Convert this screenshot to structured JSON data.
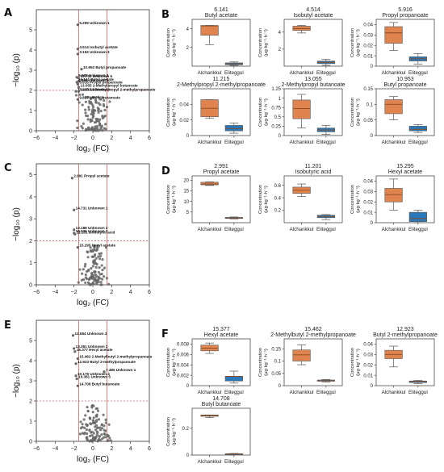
{
  "panels": [
    {
      "letter": "A",
      "type": "volcano",
      "xlabel": "log₂ (FC)",
      "ylabel": "−log₁₀ (p)",
      "xlim": [
        -6,
        6
      ],
      "ylim": [
        0,
        6
      ],
      "xticks": [
        -6,
        -4,
        -2,
        0,
        2,
        4,
        6
      ],
      "yticks": [
        0,
        1,
        2,
        3,
        4,
        5
      ],
      "thresholds": {
        "x": [
          -1.5,
          1.5
        ],
        "y": 2
      },
      "annotations": [
        {
          "text": "5.299 Unknown 1",
          "x": -1.6,
          "y": 5.25
        },
        {
          "text": "4.514 Isobutyl acetate",
          "x": -1.6,
          "y": 4.05
        },
        {
          "text": "3.152 Unknown 3",
          "x": -1.6,
          "y": 3.8
        },
        {
          "text": "10.953 Butyl propanoate",
          "x": -1.2,
          "y": 3.05
        },
        {
          "text": "8.988 Unknown 4",
          "x": -1.7,
          "y": 2.65
        },
        {
          "text": "13.711 Unknown 6",
          "x": -1.5,
          "y": 2.6
        },
        {
          "text": "6.141 Butyl acetate",
          "x": -1.5,
          "y": 2.45
        },
        {
          "text": "4.898 Unknown 5",
          "x": -1.7,
          "y": 2.4
        },
        {
          "text": "5.916 Propyl propanoate",
          "x": -1.6,
          "y": 2.3
        },
        {
          "text": "13.055 2-Methylpropyl butanoate",
          "x": -1.5,
          "y": 2.15
        },
        {
          "text": "10.455 Unknown 6",
          "x": -1.8,
          "y": 1.95
        },
        {
          "text": "11.215 2-Methylpropyl 2-methylpropanoate",
          "x": -1.5,
          "y": 1.95
        },
        {
          "text": "9.817 Methyl butanoate",
          "x": -1.6,
          "y": 1.55
        }
      ]
    },
    {
      "letter": "C",
      "type": "volcano",
      "xlabel": "log₂ (FC)",
      "ylabel": "−log₁₀ (p)",
      "xlim": [
        -6,
        6
      ],
      "ylim": [
        0,
        5.5
      ],
      "xticks": [
        -6,
        -4,
        -2,
        0,
        2,
        4,
        6
      ],
      "yticks": [
        0,
        1,
        2,
        3,
        4,
        5
      ],
      "thresholds": {
        "x": [
          -1.5,
          1.5
        ],
        "y": 2
      },
      "annotations": [
        {
          "text": "2.991 Propyl acetate",
          "x": -2.2,
          "y": 4.85
        },
        {
          "text": "14.731 Unknown 1",
          "x": -2.0,
          "y": 3.4
        },
        {
          "text": "13.188 Unknown 2",
          "x": -2.0,
          "y": 2.5
        },
        {
          "text": "10.026 Unknown 3",
          "x": -2.0,
          "y": 2.35
        },
        {
          "text": "11.201 Isobutyric acid",
          "x": -1.9,
          "y": 2.3
        },
        {
          "text": "15.295 Hexyl acetate",
          "x": -1.6,
          "y": 1.7
        }
      ]
    },
    {
      "letter": "E",
      "type": "volcano",
      "xlabel": "log₂ (FC)",
      "ylabel": "−log₁₀ (p)",
      "xlim": [
        -6,
        6
      ],
      "ylim": [
        0,
        6
      ],
      "xticks": [
        -6,
        -4,
        -2,
        0,
        2,
        4,
        6
      ],
      "yticks": [
        0,
        1,
        2,
        3,
        4,
        5
      ],
      "thresholds": {
        "x": [
          -1.5,
          1.5
        ],
        "y": 2
      },
      "annotations": [
        {
          "text": "13.684 Unknown 3",
          "x": -2.1,
          "y": 5.25
        },
        {
          "text": "13.361 Unknown 2",
          "x": -2.0,
          "y": 4.6
        },
        {
          "text": "15.377 Hexyl acetate",
          "x": -1.9,
          "y": 4.45
        },
        {
          "text": "15.462 2-Methylbutyl 2-methylpropanoate",
          "x": -1.6,
          "y": 4.1
        },
        {
          "text": "12.923 Butyl 2-methylpropanoate",
          "x": -1.8,
          "y": 3.85
        },
        {
          "text": "10.176 Unknown 4",
          "x": -1.8,
          "y": 3.25
        },
        {
          "text": "10.381 Unknown 5",
          "x": -1.7,
          "y": 3.1
        },
        {
          "text": "7.485 Unknown 1",
          "x": 1.2,
          "y": 3.45
        },
        {
          "text": "14.708 Butyl butanoate",
          "x": -1.6,
          "y": 2.75
        }
      ]
    },
    {
      "letter": "B",
      "type": "box"
    },
    {
      "letter": "D",
      "type": "box"
    },
    {
      "letter": "F",
      "type": "box"
    }
  ],
  "chart_data": [
    {
      "type": "box",
      "panel": "B",
      "code": "6.141",
      "name": "Butyl acetate",
      "ylabel": "Concentration (μg·kg⁻¹·h⁻¹)",
      "ylim": [
        0,
        5
      ],
      "yticks": [
        2,
        4
      ],
      "categories": [
        "Alchankkul",
        "Eliteggul"
      ],
      "boxes": [
        {
          "min": 2.3,
          "q1": 3.3,
          "median": 4.3,
          "q3": 4.35,
          "max": 4.35
        },
        {
          "min": 0.08,
          "q1": 0.15,
          "median": 0.25,
          "q3": 0.35,
          "max": 0.45
        }
      ]
    },
    {
      "type": "box",
      "panel": "B",
      "code": "4.514",
      "name": "Isobutyl acetate",
      "ylabel": "Concentration (μg·kg⁻¹·h⁻¹)",
      "ylim": [
        0,
        5.5
      ],
      "yticks": [
        2,
        4
      ],
      "categories": [
        "Alchankkul",
        "Eliteggul"
      ],
      "boxes": [
        {
          "min": 3.9,
          "q1": 4.2,
          "median": 4.4,
          "q3": 4.7,
          "max": 4.8
        },
        {
          "min": 0.1,
          "q1": 0.3,
          "median": 0.45,
          "q3": 0.6,
          "max": 0.8
        }
      ]
    },
    {
      "type": "box",
      "panel": "B",
      "code": "5.916",
      "name": "Propyl propanoate",
      "ylabel": "Concentration (μg·kg⁻¹·h⁻¹)",
      "ylim": [
        0,
        0.045
      ],
      "yticks": [
        0,
        0.01,
        0.02,
        0.03,
        0.04
      ],
      "categories": [
        "Alchankkul",
        "Eliteggul"
      ],
      "boxes": [
        {
          "min": 0.015,
          "q1": 0.022,
          "median": 0.032,
          "q3": 0.038,
          "max": 0.042
        },
        {
          "min": 0.002,
          "q1": 0.005,
          "median": 0.007,
          "q3": 0.009,
          "max": 0.012
        }
      ]
    },
    {
      "type": "box",
      "panel": "B",
      "code": "11.215",
      "name": "2-Methylpropyl 2-methylpropanoate",
      "ylabel": "Concentration (μg·kg⁻¹·h⁻¹)",
      "ylim": [
        0,
        0.06
      ],
      "yticks": [
        0,
        0.02,
        0.04
      ],
      "categories": [
        "Alchankkul",
        "Eliteggul"
      ],
      "boxes": [
        {
          "min": 0.022,
          "q1": 0.024,
          "median": 0.035,
          "q3": 0.046,
          "max": 0.046
        },
        {
          "min": 0.003,
          "q1": 0.006,
          "median": 0.009,
          "q3": 0.013,
          "max": 0.016
        }
      ]
    },
    {
      "type": "box",
      "panel": "B",
      "code": "13.055",
      "name": "2-Methylpropyl butanoate",
      "ylabel": "Concentration (μg·kg⁻¹·h⁻¹)",
      "ylim": [
        0,
        1.25
      ],
      "yticks": [
        0,
        0.25,
        0.5,
        0.75,
        1.0,
        1.25
      ],
      "categories": [
        "Alchankkul",
        "Eliteggul"
      ],
      "boxes": [
        {
          "min": 0.2,
          "q1": 0.45,
          "median": 0.72,
          "q3": 0.95,
          "max": 1.1
        },
        {
          "min": 0.03,
          "q1": 0.1,
          "median": 0.15,
          "q3": 0.2,
          "max": 0.27
        }
      ]
    },
    {
      "type": "box",
      "panel": "B",
      "code": "10.953",
      "name": "Butyl propanoate",
      "ylabel": "Concentration (μg·kg⁻¹·h⁻¹)",
      "ylim": [
        0,
        0.15
      ],
      "yticks": [
        0,
        0.05,
        0.1,
        0.15
      ],
      "categories": [
        "Alchankkul",
        "Eliteggul"
      ],
      "boxes": [
        {
          "min": 0.05,
          "q1": 0.07,
          "median": 0.1,
          "q3": 0.115,
          "max": 0.125
        },
        {
          "min": 0.01,
          "q1": 0.015,
          "median": 0.02,
          "q3": 0.03,
          "max": 0.035
        }
      ]
    },
    {
      "type": "box",
      "panel": "D",
      "code": "2.991",
      "name": "Propyl acetate",
      "ylabel": "Concentration (μg·kg⁻¹·h⁻¹)",
      "ylim": [
        0,
        22
      ],
      "yticks": [
        5,
        10,
        15,
        20
      ],
      "categories": [
        "Alchankkul",
        "Eliteggul"
      ],
      "boxes": [
        {
          "min": 17.5,
          "q1": 17.8,
          "median": 18.2,
          "q3": 19.0,
          "max": 19.2
        },
        {
          "min": 1.8,
          "q1": 2.0,
          "median": 2.2,
          "q3": 2.5,
          "max": 2.7
        }
      ]
    },
    {
      "type": "box",
      "panel": "D",
      "code": "11.201",
      "name": "Isobutyric acid",
      "ylabel": "Concentration (μg·kg⁻¹·h⁻¹)",
      "ylim": [
        0,
        0.75
      ],
      "yticks": [
        0.2,
        0.4,
        0.6
      ],
      "categories": [
        "Alchankkul",
        "Eliteggul"
      ],
      "boxes": [
        {
          "min": 0.42,
          "q1": 0.47,
          "median": 0.52,
          "q3": 0.57,
          "max": 0.62
        },
        {
          "min": 0.05,
          "q1": 0.08,
          "median": 0.1,
          "q3": 0.12,
          "max": 0.13
        }
      ]
    },
    {
      "type": "box",
      "panel": "D",
      "code": "15.295",
      "name": "Hexyl acetate",
      "ylabel": "Concentration (μg·kg⁻¹·h⁻¹)",
      "ylim": [
        0,
        0.045
      ],
      "yticks": [
        0,
        0.01,
        0.02,
        0.03,
        0.04
      ],
      "categories": [
        "Alchankkul",
        "Eliteggul"
      ],
      "boxes": [
        {
          "min": 0.012,
          "q1": 0.02,
          "median": 0.027,
          "q3": 0.033,
          "max": 0.042
        },
        {
          "min": 0.0,
          "q1": 0.001,
          "median": 0.004,
          "q3": 0.01,
          "max": 0.012
        }
      ]
    },
    {
      "type": "box",
      "panel": "F",
      "code": "15.377",
      "name": "Hexyl acetate",
      "ylabel": "Concentration (μg·kg⁻¹·h⁻¹)",
      "ylim": [
        0,
        0.009
      ],
      "yticks": [
        0,
        0.002,
        0.004,
        0.006,
        0.008
      ],
      "categories": [
        "Alchankkul",
        "Eliteggul"
      ],
      "boxes": [
        {
          "min": 0.0062,
          "q1": 0.0067,
          "median": 0.0072,
          "q3": 0.0078,
          "max": 0.0082
        },
        {
          "min": 0.0005,
          "q1": 0.0009,
          "median": 0.0018,
          "q3": 0.0018,
          "max": 0.0028
        }
      ]
    },
    {
      "type": "box",
      "panel": "F",
      "code": "15.462",
      "name": "2-Methylbutyl 2-methylpropanoate",
      "ylabel": "Concentration (μg·kg⁻¹·h⁻¹)",
      "ylim": [
        0,
        0.19
      ],
      "yticks": [
        0,
        0.05,
        0.1,
        0.15
      ],
      "categories": [
        "Alchankkul",
        "Eliteggul"
      ],
      "boxes": [
        {
          "min": 0.085,
          "q1": 0.1,
          "median": 0.125,
          "q3": 0.145,
          "max": 0.165
        },
        {
          "min": 0.015,
          "q1": 0.018,
          "median": 0.02,
          "q3": 0.023,
          "max": 0.025
        }
      ]
    },
    {
      "type": "box",
      "panel": "F",
      "code": "12.923",
      "name": "Butyl 2-methylpropanoate",
      "ylabel": "Concentration (μg·kg⁻¹·h⁻¹)",
      "ylim": [
        0,
        0.045
      ],
      "yticks": [
        0,
        0.01,
        0.02,
        0.03,
        0.04
      ],
      "categories": [
        "Alchankkul",
        "Eliteggul"
      ],
      "boxes": [
        {
          "min": 0.018,
          "q1": 0.026,
          "median": 0.03,
          "q3": 0.034,
          "max": 0.038
        },
        {
          "min": 0.002,
          "q1": 0.003,
          "median": 0.004,
          "q3": 0.0045,
          "max": 0.005
        }
      ]
    },
    {
      "type": "box",
      "panel": "F",
      "code": "14.708",
      "name": "Butyl butanoate",
      "ylabel": "Concentration (μg·kg⁻¹·h⁻¹)",
      "ylim": [
        0,
        0.35
      ],
      "yticks": [
        0,
        0.2
      ],
      "categories": [
        "Alchankkul",
        "Eliteggul"
      ],
      "boxes": [
        {
          "min": 0.28,
          "q1": 0.29,
          "median": 0.295,
          "q3": 0.3,
          "max": 0.3
        },
        {
          "min": 0.004,
          "q1": 0.006,
          "median": 0.008,
          "q3": 0.01,
          "max": 0.012
        }
      ]
    }
  ],
  "colors": {
    "alchankkul": "#e0844f",
    "eliteggul": "#2a78b8",
    "threshold": "#e06060",
    "point": "#666666"
  }
}
